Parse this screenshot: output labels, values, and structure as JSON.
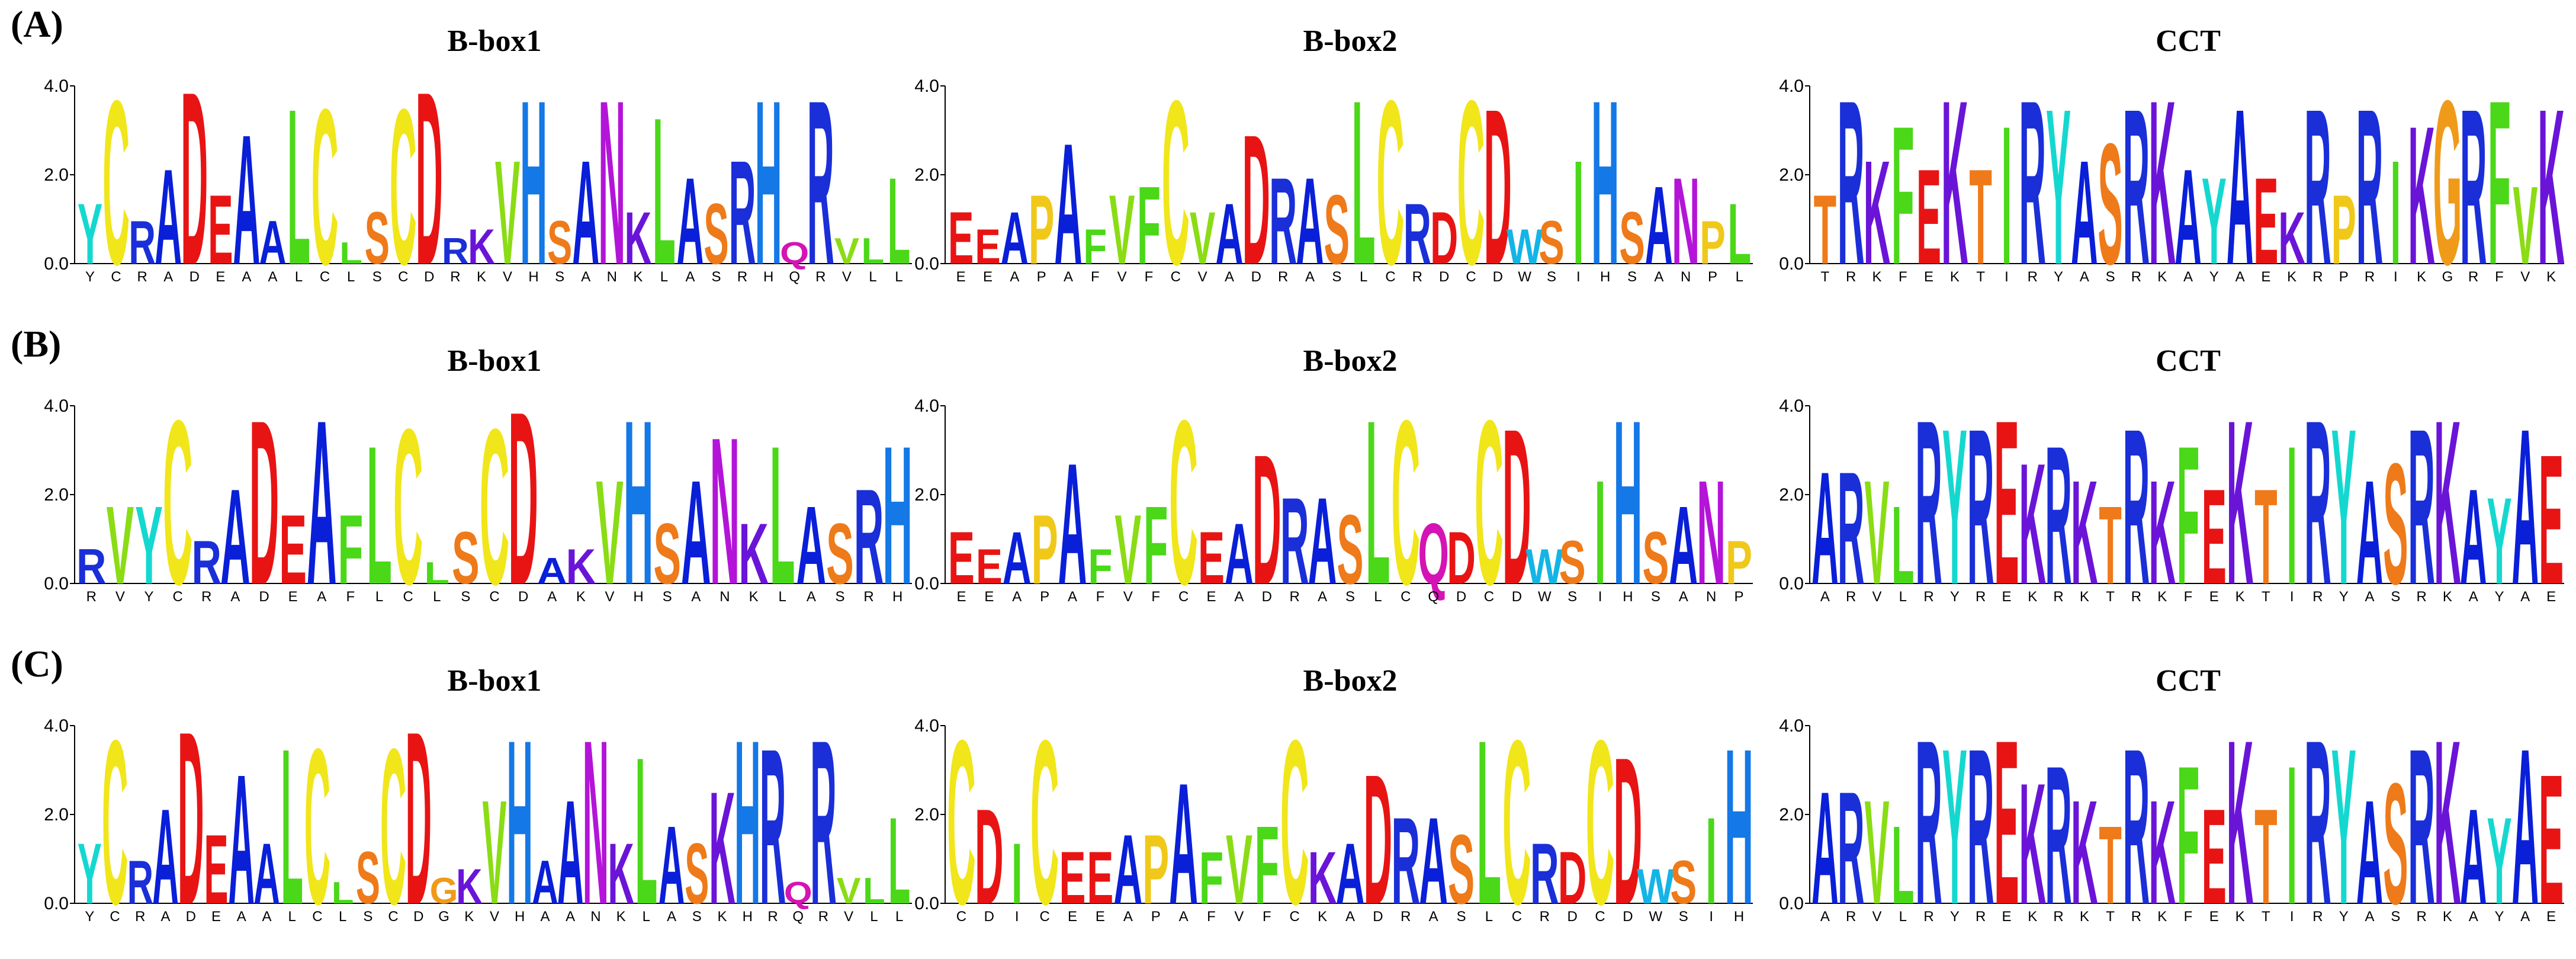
{
  "colors": {
    "A": "#0a1fd8",
    "R": "#1a2fd8",
    "K": "#6a14d8",
    "H": "#1478e6",
    "D": "#e81414",
    "E": "#e81414",
    "C": "#f0e61a",
    "S": "#ee7a1a",
    "T": "#ee7a1a",
    "N": "#b414d8",
    "Q": "#d414b4",
    "G": "#f09a1a",
    "P": "#f0c81a",
    "L": "#4ad818",
    "I": "#4ad818",
    "V": "#8adc14",
    "F": "#4ad818",
    "M": "#0a1fd8",
    "Y": "#14d8d0",
    "W": "#14b4e6"
  },
  "y_ticks": [
    "0.0",
    "2.0",
    "4.0"
  ],
  "panels": [
    {
      "label": "(A)",
      "logos": [
        {
          "title": "B-box1",
          "positions": [
            "Y",
            "C",
            "R",
            "A",
            "D",
            "E",
            "A",
            "A",
            "L",
            "C",
            "L",
            "S",
            "C",
            "D",
            "R",
            "K",
            "V",
            "H",
            "S",
            "A",
            "N",
            "K",
            "L",
            "A",
            "S",
            "R",
            "H",
            "Q",
            "R",
            "V",
            "L",
            "L"
          ],
          "heights": [
            1.4,
            3.8,
            1.0,
            2.2,
            4.0,
            1.6,
            3.0,
            1.0,
            3.6,
            3.6,
            0.5,
            1.2,
            3.6,
            4.0,
            0.6,
            0.8,
            2.4,
            3.8,
            1.0,
            2.4,
            3.8,
            1.2,
            3.4,
            2.0,
            1.4,
            2.4,
            3.8,
            0.5,
            3.8,
            0.6,
            0.6,
            2.0
          ]
        },
        {
          "title": "B-box2",
          "positions": [
            "E",
            "E",
            "A",
            "P",
            "A",
            "F",
            "V",
            "F",
            "C",
            "V",
            "A",
            "D",
            "R",
            "A",
            "S",
            "L",
            "C",
            "R",
            "D",
            "C",
            "D",
            "W",
            "S",
            "I",
            "H",
            "S",
            "A",
            "N",
            "P",
            "L"
          ],
          "heights": [
            1.2,
            0.8,
            1.2,
            1.6,
            2.8,
            0.8,
            1.6,
            1.8,
            3.8,
            1.2,
            1.4,
            3.0,
            2.0,
            2.0,
            1.6,
            3.8,
            3.8,
            1.4,
            1.2,
            3.8,
            3.6,
            0.8,
            1.0,
            2.4,
            3.8,
            1.2,
            1.8,
            2.0,
            1.0,
            1.4
          ]
        },
        {
          "title": "CCT",
          "positions": [
            "T",
            "R",
            "K",
            "F",
            "E",
            "K",
            "T",
            "I",
            "R",
            "Y",
            "A",
            "S",
            "R",
            "K",
            "A",
            "Y",
            "A",
            "E",
            "K",
            "R",
            "P",
            "R",
            "I",
            "K",
            "G",
            "R",
            "F",
            "V",
            "K"
          ],
          "heights": [
            1.6,
            3.8,
            2.4,
            3.2,
            2.2,
            3.8,
            2.2,
            3.2,
            3.8,
            3.6,
            2.4,
            2.8,
            3.6,
            3.8,
            2.2,
            2.0,
            3.6,
            2.0,
            1.2,
            3.6,
            1.6,
            3.6,
            2.4,
            3.2,
            3.8,
            3.6,
            3.8,
            1.8,
            3.6
          ]
        }
      ]
    },
    {
      "label": "(B)",
      "logos": [
        {
          "title": "B-box1",
          "positions": [
            "R",
            "V",
            "Y",
            "C",
            "R",
            "A",
            "D",
            "E",
            "A",
            "F",
            "L",
            "C",
            "L",
            "S",
            "C",
            "D",
            "A",
            "K",
            "V",
            "H",
            "S",
            "A",
            "N",
            "K",
            "L",
            "A",
            "S",
            "R",
            "H"
          ],
          "heights": [
            0.8,
            1.8,
            1.8,
            3.8,
            1.0,
            2.2,
            3.8,
            1.6,
            3.8,
            1.6,
            3.2,
            3.6,
            0.5,
            1.2,
            3.6,
            4.0,
            0.6,
            0.8,
            2.4,
            3.8,
            1.4,
            2.4,
            3.4,
            1.4,
            3.2,
            1.8,
            1.4,
            2.2,
            3.2
          ]
        },
        {
          "title": "B-box2",
          "positions": [
            "E",
            "E",
            "A",
            "P",
            "A",
            "F",
            "V",
            "F",
            "C",
            "E",
            "A",
            "D",
            "R",
            "A",
            "S",
            "L",
            "C",
            "Q",
            "D",
            "C",
            "D",
            "W",
            "S",
            "I",
            "H",
            "S",
            "A",
            "N",
            "P"
          ],
          "heights": [
            1.2,
            0.8,
            1.2,
            1.6,
            2.8,
            0.8,
            1.6,
            1.8,
            3.8,
            1.2,
            1.4,
            3.0,
            2.0,
            2.0,
            1.6,
            3.8,
            3.8,
            1.4,
            1.2,
            3.8,
            3.6,
            0.8,
            1.0,
            2.4,
            3.8,
            1.2,
            1.8,
            2.4,
            1.0
          ]
        },
        {
          "title": "CCT",
          "positions": [
            "A",
            "R",
            "V",
            "L",
            "R",
            "Y",
            "R",
            "E",
            "K",
            "R",
            "K",
            "T",
            "R",
            "K",
            "F",
            "E",
            "K",
            "T",
            "I",
            "R",
            "Y",
            "A",
            "S",
            "R",
            "K",
            "A",
            "Y",
            "A",
            "E"
          ],
          "heights": [
            2.6,
            2.6,
            2.4,
            1.8,
            3.8,
            3.6,
            3.6,
            3.8,
            2.8,
            3.2,
            2.4,
            1.8,
            3.6,
            2.4,
            3.2,
            2.2,
            3.8,
            2.2,
            3.2,
            3.8,
            3.6,
            2.4,
            2.8,
            3.6,
            3.8,
            2.2,
            2.0,
            3.6,
            3.0
          ]
        }
      ]
    },
    {
      "label": "(C)",
      "logos": [
        {
          "title": "B-box1",
          "positions": [
            "Y",
            "C",
            "R",
            "A",
            "D",
            "E",
            "A",
            "A",
            "L",
            "C",
            "L",
            "S",
            "C",
            "D",
            "G",
            "K",
            "V",
            "H",
            "A",
            "A",
            "N",
            "K",
            "L",
            "A",
            "S",
            "K",
            "H",
            "R",
            "Q",
            "R",
            "V",
            "L",
            "L"
          ],
          "heights": [
            1.4,
            3.8,
            1.0,
            2.2,
            4.0,
            1.6,
            3.0,
            1.4,
            3.6,
            3.6,
            0.5,
            1.2,
            3.6,
            4.0,
            0.6,
            0.8,
            2.4,
            3.8,
            1.0,
            2.4,
            3.8,
            1.4,
            3.4,
            1.8,
            1.4,
            2.6,
            3.8,
            3.6,
            0.5,
            3.8,
            0.6,
            0.6,
            2.0
          ]
        },
        {
          "title": "B-box2",
          "positions": [
            "C",
            "D",
            "I",
            "C",
            "E",
            "E",
            "A",
            "P",
            "A",
            "F",
            "V",
            "F",
            "C",
            "K",
            "A",
            "D",
            "R",
            "A",
            "S",
            "L",
            "C",
            "R",
            "D",
            "C",
            "D",
            "W",
            "S",
            "I",
            "H"
          ],
          "heights": [
            3.8,
            2.2,
            1.4,
            3.8,
            1.2,
            1.2,
            1.6,
            1.6,
            2.8,
            1.2,
            1.6,
            1.8,
            3.8,
            1.2,
            1.4,
            3.0,
            2.0,
            2.0,
            1.6,
            3.8,
            3.8,
            1.4,
            1.2,
            3.8,
            3.4,
            0.8,
            1.0,
            2.0,
            3.6
          ]
        },
        {
          "title": "CCT",
          "positions": [
            "A",
            "R",
            "V",
            "L",
            "R",
            "Y",
            "R",
            "E",
            "K",
            "R",
            "K",
            "T",
            "R",
            "K",
            "F",
            "E",
            "K",
            "T",
            "I",
            "R",
            "Y",
            "A",
            "S",
            "R",
            "K",
            "A",
            "Y",
            "A",
            "E"
          ],
          "heights": [
            2.6,
            2.6,
            2.4,
            1.8,
            3.8,
            3.6,
            3.6,
            3.8,
            2.8,
            3.2,
            2.4,
            1.8,
            3.6,
            2.4,
            3.2,
            2.2,
            3.8,
            2.2,
            3.2,
            3.8,
            3.6,
            2.4,
            2.8,
            3.6,
            3.8,
            2.2,
            2.0,
            3.6,
            3.0
          ]
        }
      ]
    }
  ]
}
